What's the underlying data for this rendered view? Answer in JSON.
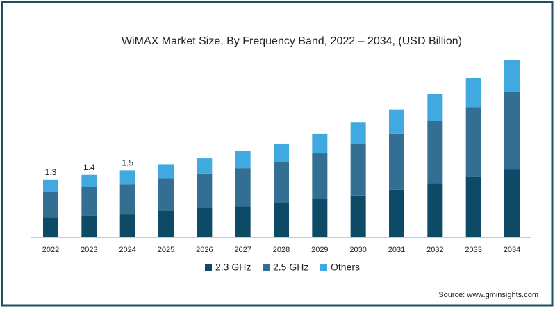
{
  "chart_data": {
    "type": "stacked-bar",
    "title": "WiMAX Market Size, By Frequency Band, 2022 – 2034, (USD Billion)",
    "categories": [
      "2022",
      "2023",
      "2024",
      "2025",
      "2026",
      "2027",
      "2028",
      "2029",
      "2030",
      "2031",
      "2032",
      "2033",
      "2034"
    ],
    "series": [
      {
        "name": "2.3 GHz",
        "color": "#0d4a66",
        "values": [
          0.45,
          0.49,
          0.53,
          0.6,
          0.66,
          0.7,
          0.78,
          0.86,
          0.94,
          1.08,
          1.21,
          1.36,
          1.53
        ]
      },
      {
        "name": "2.5 GHz",
        "color": "#336f93",
        "values": [
          0.58,
          0.64,
          0.67,
          0.72,
          0.78,
          0.86,
          0.92,
          1.03,
          1.16,
          1.25,
          1.41,
          1.57,
          1.75
        ]
      },
      {
        "name": "Others",
        "color": "#40a9e0",
        "values": [
          0.27,
          0.28,
          0.31,
          0.33,
          0.34,
          0.39,
          0.41,
          0.44,
          0.49,
          0.55,
          0.6,
          0.66,
          0.72
        ]
      }
    ],
    "totals": [
      1.3,
      1.4,
      1.5
    ],
    "legend": "bottom",
    "source": "Source: www.gminsights.com"
  }
}
